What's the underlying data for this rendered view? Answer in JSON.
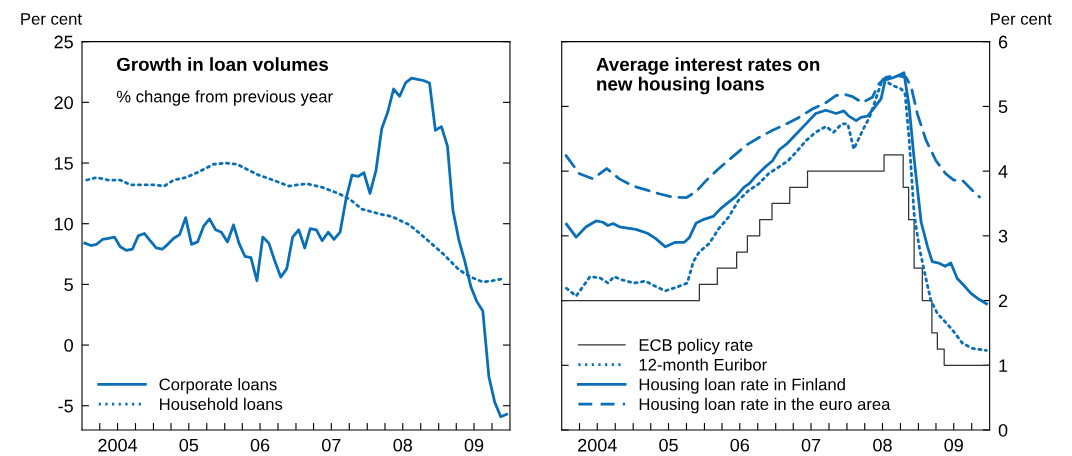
{
  "chart_data": [
    {
      "type": "line",
      "title": "Growth in loan volumes",
      "subtitle": "% change from previous year",
      "ylabel": "Per cent",
      "legend": "bottom left",
      "xlim": [
        "2004-01-01",
        "2010-01-01"
      ],
      "ylim": [
        -7,
        25
      ],
      "yticks": [
        -5,
        0,
        5,
        10,
        15,
        20,
        25
      ],
      "xticks": [
        {
          "value": "2004-04-01",
          "label": null
        },
        {
          "value": "2004-07-01",
          "label": "2004"
        },
        {
          "value": "2004-10-01",
          "label": null
        },
        {
          "value": "2005-01-01",
          "label": null
        },
        {
          "value": "2005-04-01",
          "label": null
        },
        {
          "value": "2005-07-01",
          "label": "05"
        },
        {
          "value": "2005-10-01",
          "label": null
        },
        {
          "value": "2006-01-01",
          "label": null
        },
        {
          "value": "2006-04-01",
          "label": null
        },
        {
          "value": "2006-07-01",
          "label": "06"
        },
        {
          "value": "2006-10-01",
          "label": null
        },
        {
          "value": "2007-01-01",
          "label": null
        },
        {
          "value": "2007-04-01",
          "label": null
        },
        {
          "value": "2007-07-01",
          "label": "07"
        },
        {
          "value": "2007-10-01",
          "label": null
        },
        {
          "value": "2008-01-01",
          "label": null
        },
        {
          "value": "2008-04-01",
          "label": null
        },
        {
          "value": "2008-07-01",
          "label": "08"
        },
        {
          "value": "2008-10-01",
          "label": null
        },
        {
          "value": "2009-01-01",
          "label": null
        },
        {
          "value": "2009-04-01",
          "label": null
        },
        {
          "value": "2009-07-01",
          "label": "09"
        },
        {
          "value": "2009-10-01",
          "label": null
        }
      ],
      "series": [
        {
          "name": "Corporate loans",
          "line_style": "solid",
          "color": "#0a6fb7",
          "x": [
            "2004-01-15",
            "2004-02-15",
            "2004-03-15",
            "2004-04-15",
            "2004-05-15",
            "2004-06-15",
            "2004-07-15",
            "2004-08-15",
            "2004-09-15",
            "2004-10-15",
            "2004-11-15",
            "2004-12-15",
            "2005-01-15",
            "2005-02-15",
            "2005-03-15",
            "2005-04-15",
            "2005-05-15",
            "2005-06-15",
            "2005-07-15",
            "2005-08-15",
            "2005-09-15",
            "2005-10-15",
            "2005-11-15",
            "2005-12-15",
            "2006-01-15",
            "2006-02-15",
            "2006-03-15",
            "2006-04-15",
            "2006-05-15",
            "2006-06-15",
            "2006-07-15",
            "2006-08-15",
            "2006-09-15",
            "2006-10-15",
            "2006-11-15",
            "2006-12-15",
            "2007-01-15",
            "2007-02-15",
            "2007-03-15",
            "2007-04-15",
            "2007-05-15",
            "2007-06-15",
            "2007-07-15",
            "2007-08-15",
            "2007-09-15",
            "2007-10-15",
            "2007-11-15",
            "2007-12-15",
            "2008-01-15",
            "2008-02-15",
            "2008-03-15",
            "2008-04-15",
            "2008-05-15",
            "2008-06-15",
            "2008-07-15",
            "2008-08-15",
            "2008-09-15",
            "2008-10-15",
            "2008-11-15",
            "2008-12-15",
            "2009-01-15",
            "2009-02-15",
            "2009-03-15",
            "2009-04-15",
            "2009-05-15",
            "2009-06-15",
            "2009-07-15",
            "2009-08-15",
            "2009-09-15",
            "2009-10-15",
            "2009-11-15",
            "2009-12-15"
          ],
          "values": [
            8.4,
            8.2,
            8.3,
            8.7,
            8.8,
            8.9,
            8.1,
            7.8,
            7.9,
            9.0,
            9.2,
            8.6,
            8.0,
            7.9,
            8.3,
            8.8,
            9.1,
            10.5,
            8.3,
            8.5,
            9.8,
            10.4,
            9.5,
            9.3,
            8.5,
            9.9,
            8.4,
            7.3,
            7.2,
            5.3,
            8.9,
            8.4,
            6.9,
            5.6,
            6.3,
            8.9,
            9.5,
            8.0,
            9.6,
            9.5,
            8.6,
            9.3,
            8.7,
            9.3,
            12.1,
            14.0,
            13.9,
            14.2,
            12.5,
            14.4,
            17.8,
            19.2,
            21.1,
            20.5,
            21.6,
            22.0,
            21.9,
            21.8,
            21.6,
            17.7,
            18.0,
            16.4,
            11.1,
            8.6,
            6.9,
            4.8,
            3.6,
            2.8,
            -2.6,
            -4.7,
            -5.9,
            -5.7
          ]
        },
        {
          "name": "Household loans",
          "line_style": "dotted",
          "color": "#0a6fb7",
          "x": [
            "2004-01-25",
            "2004-03-15",
            "2004-05-15",
            "2004-07-15",
            "2004-09-05",
            "2004-11-05",
            "2005-01-05",
            "2005-02-25",
            "2005-04-15",
            "2005-06-15",
            "2005-08-25",
            "2005-11-05",
            "2006-01-05",
            "2006-03-05",
            "2006-05-05",
            "2006-06-25",
            "2006-09-05",
            "2006-11-25",
            "2007-02-25",
            "2007-05-15",
            "2007-08-05",
            "2007-10-05",
            "2007-12-05",
            "2008-03-05",
            "2008-05-05",
            "2008-08-05",
            "2008-10-25",
            "2009-01-25",
            "2009-04-15",
            "2009-06-15",
            "2009-08-15",
            "2009-10-05",
            "2009-12-05"
          ],
          "values": [
            13.6,
            13.8,
            13.6,
            13.6,
            13.2,
            13.2,
            13.2,
            13.1,
            13.6,
            13.8,
            14.3,
            14.9,
            15.0,
            14.9,
            14.4,
            14.0,
            13.6,
            13.1,
            13.3,
            13.0,
            12.5,
            12.0,
            11.2,
            10.8,
            10.6,
            9.9,
            8.8,
            7.5,
            6.2,
            5.6,
            5.2,
            5.3,
            5.5
          ]
        }
      ]
    },
    {
      "type": "line",
      "title": "Average interest rates on\nnew housing loans",
      "ylabel": "Per cent",
      "legend": "bottom left",
      "xlim": [
        "2004-01-01",
        "2010-01-01"
      ],
      "ylim": [
        0,
        6
      ],
      "yticks": [
        0,
        1,
        2,
        3,
        4,
        5,
        6
      ],
      "xticks": [
        {
          "value": "2004-04-01",
          "label": null
        },
        {
          "value": "2004-07-01",
          "label": "2004"
        },
        {
          "value": "2004-10-01",
          "label": null
        },
        {
          "value": "2005-01-01",
          "label": null
        },
        {
          "value": "2005-04-01",
          "label": null
        },
        {
          "value": "2005-07-01",
          "label": "05"
        },
        {
          "value": "2005-10-01",
          "label": null
        },
        {
          "value": "2006-01-01",
          "label": null
        },
        {
          "value": "2006-04-01",
          "label": null
        },
        {
          "value": "2006-07-01",
          "label": "06"
        },
        {
          "value": "2006-10-01",
          "label": null
        },
        {
          "value": "2007-01-01",
          "label": null
        },
        {
          "value": "2007-04-01",
          "label": null
        },
        {
          "value": "2007-07-01",
          "label": "07"
        },
        {
          "value": "2007-10-01",
          "label": null
        },
        {
          "value": "2008-01-01",
          "label": null
        },
        {
          "value": "2008-04-01",
          "label": null
        },
        {
          "value": "2008-07-01",
          "label": "08"
        },
        {
          "value": "2008-10-01",
          "label": null
        },
        {
          "value": "2009-01-01",
          "label": null
        },
        {
          "value": "2009-04-01",
          "label": null
        },
        {
          "value": "2009-07-01",
          "label": "09"
        },
        {
          "value": "2009-10-01",
          "label": null
        }
      ],
      "series": [
        {
          "name": "ECB policy rate",
          "type": "step",
          "line_style": "solid",
          "color": "#333333",
          "x": [
            "2004-01-01",
            "2005-12-06",
            "2006-03-08",
            "2006-06-15",
            "2006-08-09",
            "2006-10-11",
            "2006-12-13",
            "2007-03-14",
            "2007-06-13",
            "2008-07-09",
            "2008-10-15",
            "2008-11-12",
            "2008-12-10",
            "2009-01-21",
            "2009-03-11",
            "2009-04-08",
            "2009-05-13",
            "2009-12-31"
          ],
          "values": [
            2.0,
            2.25,
            2.5,
            2.75,
            3.0,
            3.25,
            3.5,
            3.75,
            4.0,
            4.25,
            3.75,
            3.25,
            2.5,
            2.0,
            1.5,
            1.25,
            1.0,
            1.0
          ]
        },
        {
          "name": "12-month Euribor",
          "line_style": "dotted",
          "color": "#0a6fb7",
          "x": [
            "2004-01-25",
            "2004-03-15",
            "2004-05-25",
            "2004-07-15",
            "2004-08-25",
            "2004-09-25",
            "2004-11-05",
            "2005-01-05",
            "2005-03-05",
            "2005-04-25",
            "2005-06-15",
            "2005-08-05",
            "2005-10-05",
            "2005-11-05",
            "2005-12-05",
            "2006-01-25",
            "2006-03-15",
            "2006-05-05",
            "2006-06-25",
            "2006-08-15",
            "2006-10-05",
            "2006-11-25",
            "2007-01-15",
            "2007-03-05",
            "2007-04-15",
            "2007-06-05",
            "2007-07-25",
            "2007-09-15",
            "2007-10-25",
            "2007-12-05",
            "2008-01-05",
            "2008-02-05",
            "2008-03-25",
            "2008-04-25",
            "2008-05-25",
            "2008-07-01",
            "2008-08-25",
            "2008-10-05",
            "2008-10-25",
            "2008-11-15",
            "2008-12-10",
            "2009-01-05",
            "2009-01-30",
            "2009-03-05",
            "2009-04-08",
            "2009-05-25",
            "2009-07-01",
            "2009-08-15",
            "2009-10-05",
            "2009-12-15"
          ],
          "values": [
            2.19,
            2.07,
            2.37,
            2.35,
            2.27,
            2.37,
            2.32,
            2.27,
            2.3,
            2.22,
            2.15,
            2.2,
            2.27,
            2.6,
            2.75,
            2.88,
            3.11,
            3.29,
            3.55,
            3.7,
            3.8,
            3.96,
            4.06,
            4.16,
            4.29,
            4.47,
            4.6,
            4.69,
            4.6,
            4.73,
            4.73,
            4.34,
            4.65,
            4.83,
            5.09,
            5.42,
            5.32,
            5.27,
            5.19,
            4.47,
            3.34,
            2.83,
            2.47,
            2.01,
            1.8,
            1.65,
            1.52,
            1.34,
            1.26,
            1.23
          ]
        },
        {
          "name": "Housing loan rate in Finland",
          "line_style": "solid",
          "color": "#0a6fb7",
          "x": [
            "2004-01-25",
            "2004-03-15",
            "2004-05-05",
            "2004-06-25",
            "2004-07-30",
            "2004-08-25",
            "2004-09-20",
            "2004-10-22",
            "2005-01-15",
            "2005-03-15",
            "2005-04-25",
            "2005-06-15",
            "2005-08-05",
            "2005-09-20",
            "2005-10-15",
            "2005-11-20",
            "2005-12-25",
            "2006-02-15",
            "2006-03-25",
            "2006-05-05",
            "2006-06-12",
            "2006-07-22",
            "2006-08-20",
            "2006-09-23",
            "2006-11-03",
            "2006-12-16",
            "2007-01-19",
            "2007-03-02",
            "2007-04-15",
            "2007-06-05",
            "2007-07-25",
            "2007-09-15",
            "2007-11-07",
            "2007-12-16",
            "2008-01-11",
            "2008-02-17",
            "2008-03-13",
            "2008-04-15",
            "2008-05-18",
            "2008-06-24",
            "2008-07-15",
            "2008-08-20",
            "2008-09-23",
            "2008-10-19",
            "2008-11-14",
            "2008-12-09",
            "2009-01-15",
            "2009-02-17",
            "2009-03-13",
            "2009-04-15",
            "2009-05-18",
            "2009-06-16",
            "2009-07-19",
            "2009-08-20",
            "2009-09-27",
            "2009-11-07",
            "2009-12-16"
          ],
          "values": [
            3.18,
            2.98,
            3.14,
            3.23,
            3.21,
            3.16,
            3.19,
            3.14,
            3.1,
            3.04,
            2.96,
            2.83,
            2.9,
            2.9,
            2.97,
            3.2,
            3.25,
            3.3,
            3.42,
            3.52,
            3.61,
            3.75,
            3.81,
            3.93,
            4.05,
            4.16,
            4.33,
            4.43,
            4.57,
            4.73,
            4.89,
            4.94,
            4.89,
            4.93,
            4.85,
            4.78,
            4.83,
            4.85,
            4.97,
            5.12,
            5.41,
            5.44,
            5.48,
            5.52,
            5.01,
            4.22,
            3.21,
            2.83,
            2.6,
            2.58,
            2.53,
            2.58,
            2.34,
            2.24,
            2.11,
            2.02,
            1.95
          ]
        },
        {
          "name": "Housing loan rate in the euro area",
          "line_style": "dashed",
          "color": "#0a6fb7",
          "x": [
            "2004-01-23",
            "2004-04-01",
            "2004-06-09",
            "2004-08-18",
            "2004-10-22",
            "2005-01-01",
            "2005-03-09",
            "2005-05-14",
            "2005-07-22",
            "2005-10-01",
            "2005-11-21",
            "2006-01-12",
            "2006-03-16",
            "2006-05-25",
            "2006-08-03",
            "2006-10-08",
            "2006-12-16",
            "2007-02-25",
            "2007-04-30",
            "2007-07-08",
            "2007-09-16",
            "2007-11-07",
            "2007-12-27",
            "2008-01-30",
            "2008-03-20",
            "2008-05-10",
            "2008-06-13",
            "2008-07-19",
            "2008-09-09",
            "2008-10-30",
            "2008-11-25",
            "2008-12-27",
            "2009-02-10",
            "2009-04-01",
            "2009-05-21",
            "2009-07-01",
            "2009-08-14",
            "2009-10-05",
            "2009-11-10"
          ],
          "values": [
            4.24,
            3.96,
            3.88,
            4.04,
            3.88,
            3.77,
            3.71,
            3.65,
            3.6,
            3.59,
            3.69,
            3.86,
            4.04,
            4.22,
            4.4,
            4.52,
            4.63,
            4.73,
            4.83,
            4.96,
            5.06,
            5.17,
            5.18,
            5.15,
            5.06,
            5.14,
            5.35,
            5.45,
            5.48,
            5.45,
            5.3,
            4.88,
            4.47,
            4.16,
            3.96,
            3.86,
            3.86,
            3.7,
            3.6
          ]
        }
      ]
    }
  ]
}
